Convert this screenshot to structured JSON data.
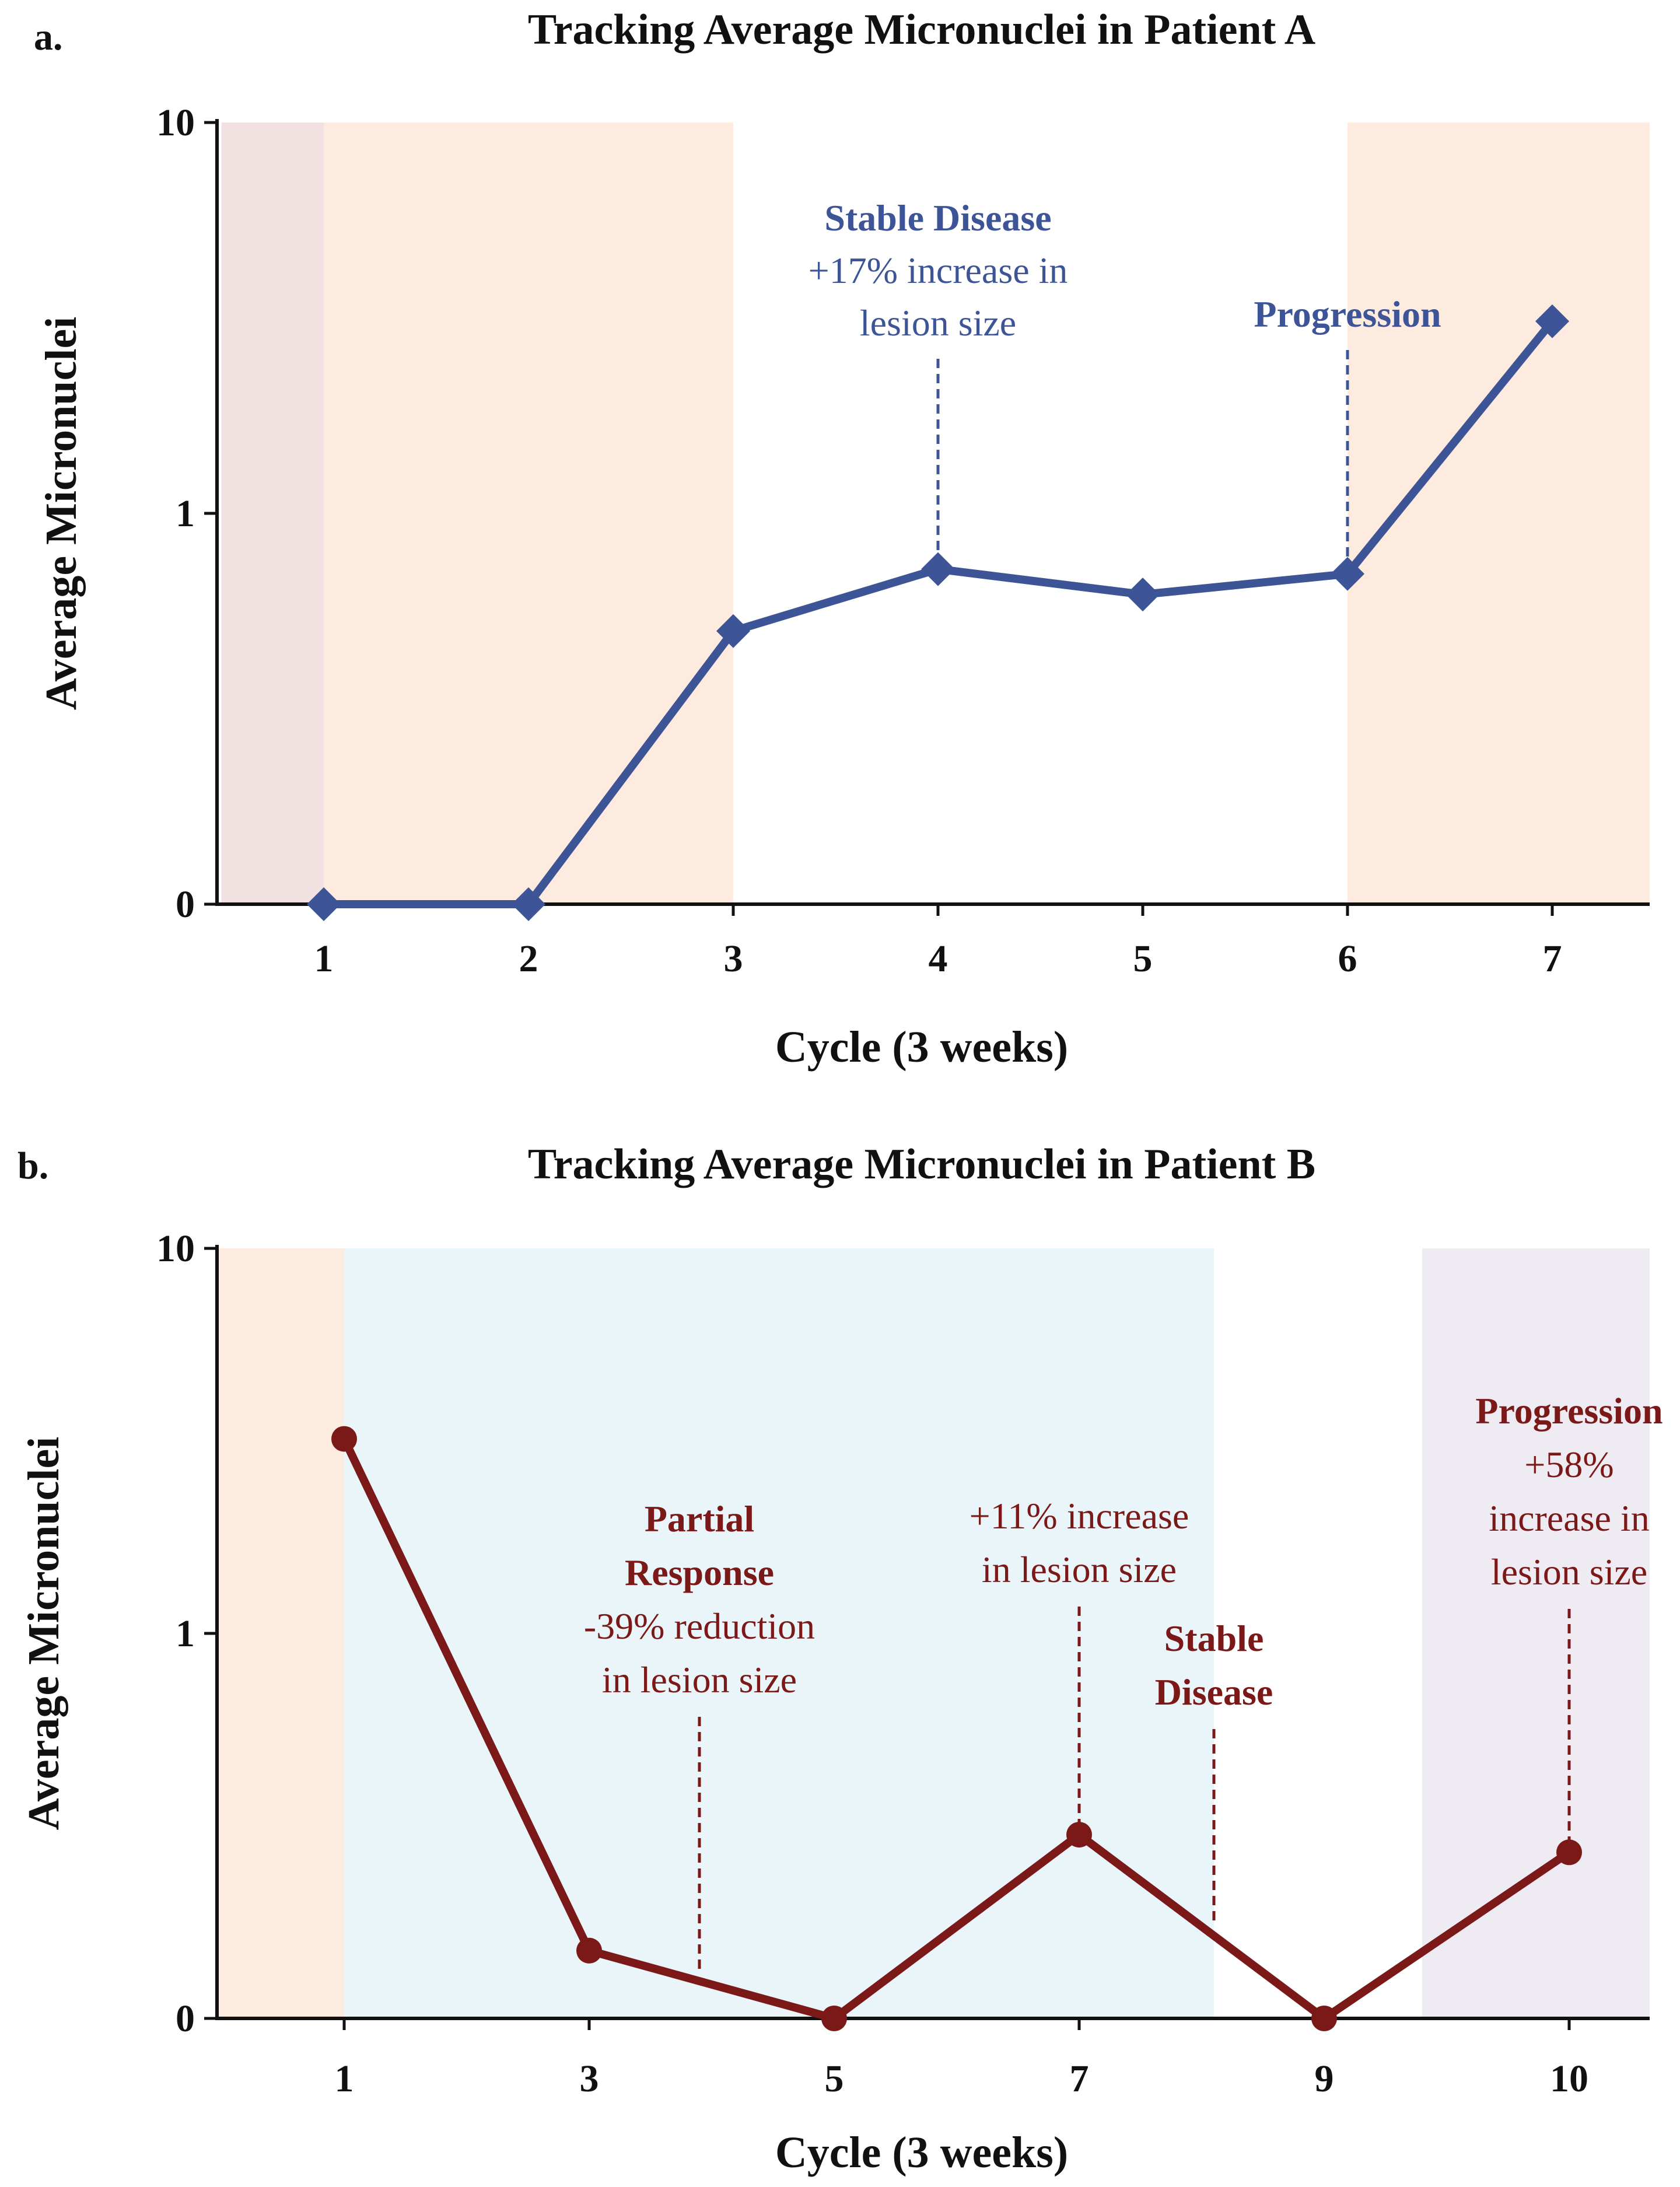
{
  "chart_data": [
    {
      "panel": "a.",
      "type": "line",
      "title": "Tracking Average Micronuclei in Patient A",
      "xlabel": "Cycle (3 weeks)",
      "ylabel": "Average Micronuclei",
      "yscale": "log",
      "yticks": [
        "0",
        "1",
        "10"
      ],
      "categories": [
        "1",
        "2",
        "3",
        "4",
        "5",
        "6",
        "7"
      ],
      "series": [
        {
          "name": "Patient A",
          "color": "#3d5597",
          "marker": "diamond",
          "values": [
            0.1,
            0.1,
            0.5,
            0.72,
            0.62,
            0.7,
            3.1
          ]
        }
      ],
      "bands": [
        {
          "from_cycle": 0.5,
          "to_cycle": 1.0,
          "color": "#f2e1e1"
        },
        {
          "from_cycle": 1.0,
          "to_cycle": 3.0,
          "color": "#fdebe0"
        },
        {
          "from_cycle": 6.0,
          "to_cycle": 7.5,
          "color": "#fdebe0"
        }
      ],
      "annotations": [
        {
          "at_cycle": 4,
          "color": "#3d5597",
          "lines": [
            {
              "text": "Stable Disease",
              "bold": true
            },
            {
              "text": "+17% increase in",
              "bold": false
            },
            {
              "text": "lesion size",
              "bold": false
            }
          ]
        },
        {
          "at_cycle": 6,
          "color": "#3d5597",
          "lines": [
            {
              "text": "Progression",
              "bold": true
            }
          ]
        }
      ]
    },
    {
      "panel": "b.",
      "type": "line",
      "title": "Tracking Average Micronuclei in Patient B",
      "xlabel": "Cycle (3 weeks)",
      "ylabel": "Average Micronuclei",
      "yscale": "log",
      "yticks": [
        "0",
        "1",
        "10"
      ],
      "categories": [
        "1",
        "3",
        "5",
        "7",
        "9",
        "10"
      ],
      "series": [
        {
          "name": "Patient B",
          "color": "#7b1818",
          "marker": "circle",
          "values": [
            3.2,
            0.15,
            0.1,
            0.3,
            0.1,
            0.27
          ]
        }
      ],
      "bands": [
        {
          "from_index": -0.55,
          "to_index": 0.0,
          "color": "#fdebe0"
        },
        {
          "from_index": 0.0,
          "to_index": 3.55,
          "color": "#e9f5f8"
        },
        {
          "from_index": 4.4,
          "to_index": 5.35,
          "color": "#efebf2"
        }
      ],
      "annotations": [
        {
          "at_index": 1.45,
          "color": "#7b1818",
          "lines": [
            {
              "text": "Partial",
              "bold": true
            },
            {
              "text": "Response",
              "bold": true
            },
            {
              "text": "-39% reduction",
              "bold": false
            },
            {
              "text": "in lesion size",
              "bold": false
            }
          ]
        },
        {
          "at_index": 3.0,
          "color": "#7b1818",
          "lines": [
            {
              "text": "+11% increase",
              "bold": false
            },
            {
              "text": "in lesion size",
              "bold": false
            }
          ]
        },
        {
          "at_index": 3.55,
          "color": "#7b1818",
          "lines": [
            {
              "text": "Stable",
              "bold": true
            },
            {
              "text": "Disease",
              "bold": true
            }
          ]
        },
        {
          "at_index": 5.0,
          "color": "#7b1818",
          "lines": [
            {
              "text": "Progression",
              "bold": true
            },
            {
              "text": "+58%",
              "bold": false
            },
            {
              "text": "increase in",
              "bold": false
            },
            {
              "text": "lesion size",
              "bold": false
            }
          ]
        }
      ]
    }
  ]
}
